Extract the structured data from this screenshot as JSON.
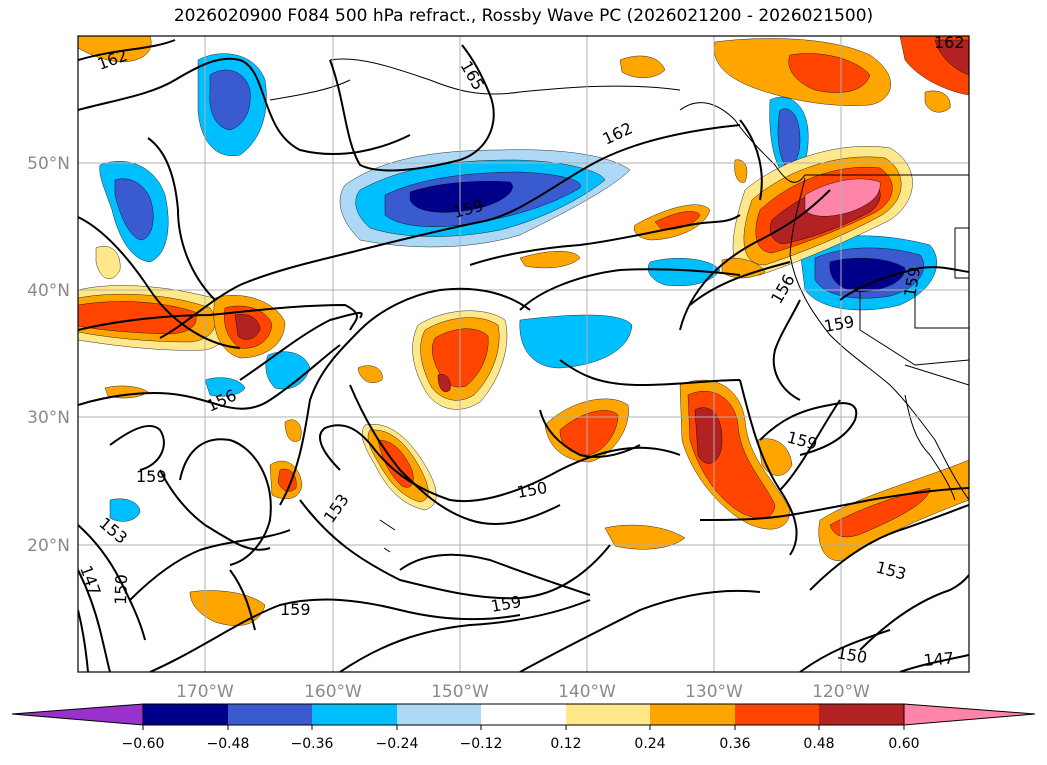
{
  "title": "2026020900 F084 500 hPa refract., Rossby Wave PC (2026021200 - 2026021500)",
  "axes": {
    "lat_labels": [
      "50°N",
      "40°N",
      "30°N",
      "20°N"
    ],
    "lon_labels": [
      "170°W",
      "160°W",
      "150°W",
      "140°W",
      "130°W",
      "120°W"
    ],
    "tick_color": "#8a8a8a"
  },
  "contour_labels": [
    "162",
    "165",
    "162",
    "159",
    "162",
    "159",
    "156",
    "159",
    "153",
    "150",
    "147",
    "153",
    "150",
    "159",
    "159",
    "159",
    "156",
    "159",
    "153",
    "150",
    "147"
  ],
  "colorbar": {
    "ticks": [
      "−0.60",
      "−0.48",
      "−0.36",
      "−0.24",
      "−0.12",
      "0.12",
      "0.24",
      "0.36",
      "0.48",
      "0.60"
    ],
    "colors": [
      "#9932cc",
      "#00008b",
      "#3a5bd0",
      "#00bfff",
      "#add8f6",
      "#ffffff",
      "#ffe88a",
      "#ffa500",
      "#ff4500",
      "#b22222",
      "#ff85a8"
    ]
  }
}
